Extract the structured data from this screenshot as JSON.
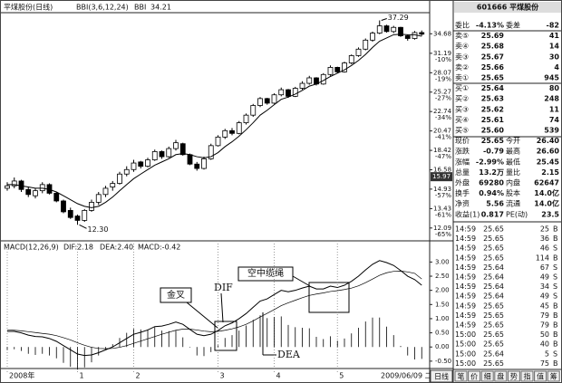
{
  "header": {
    "title": "平煤股份(日线)",
    "indicator": "BBI(3,6,12,24)",
    "bbi_label": "BBI",
    "bbi_value": 34.21
  },
  "price_chart": {
    "type": "candlestick",
    "log": true,
    "ylim": [
      11.5,
      38.5
    ],
    "yticks": [
      34.68,
      31.19,
      28.07,
      25.27,
      22.74,
      20.47,
      18.42,
      16.58,
      14.93,
      13.43,
      12.09
    ],
    "tick_pcts": [
      null,
      "-10%",
      "-19%",
      "-27%",
      "-34%",
      "-41%",
      "-47%",
      "-52%",
      "-57%",
      "-61%",
      "-65%"
    ],
    "cursor_price": 15.97,
    "low": {
      "value": 12.3,
      "label": "12.30"
    },
    "high": {
      "value": 37.29,
      "label": "37.29"
    },
    "candles": [
      [
        15.0,
        15.5,
        14.8,
        15.2
      ],
      [
        15.2,
        15.9,
        15.0,
        15.6
      ],
      [
        15.6,
        15.7,
        14.7,
        14.9
      ],
      [
        14.9,
        15.1,
        14.3,
        14.5
      ],
      [
        14.4,
        15.0,
        14.2,
        14.8
      ],
      [
        14.8,
        15.5,
        14.6,
        15.3
      ],
      [
        15.3,
        15.4,
        14.5,
        14.6
      ],
      [
        14.6,
        14.7,
        13.9,
        14.0
      ],
      [
        14.0,
        14.1,
        13.1,
        13.2
      ],
      [
        13.3,
        13.5,
        12.7,
        12.8
      ],
      [
        12.9,
        13.0,
        12.3,
        12.6
      ],
      [
        12.6,
        13.4,
        12.5,
        13.3
      ],
      [
        13.3,
        14.1,
        13.2,
        13.9
      ],
      [
        13.9,
        14.7,
        13.7,
        14.5
      ],
      [
        14.5,
        15.2,
        14.3,
        15.0
      ],
      [
        15.1,
        15.6,
        14.8,
        15.4
      ],
      [
        15.4,
        16.4,
        15.3,
        16.2
      ],
      [
        16.2,
        16.9,
        16.0,
        16.6
      ],
      [
        16.6,
        17.5,
        16.4,
        17.2
      ],
      [
        17.3,
        17.4,
        16.7,
        16.9
      ],
      [
        16.9,
        17.7,
        16.8,
        17.5
      ],
      [
        17.5,
        18.5,
        17.4,
        18.3
      ],
      [
        18.3,
        18.4,
        17.6,
        17.8
      ],
      [
        17.8,
        18.8,
        17.7,
        18.6
      ],
      [
        18.6,
        19.5,
        18.4,
        19.2
      ],
      [
        19.1,
        19.2,
        17.9,
        18.0
      ],
      [
        18.0,
        18.1,
        17.0,
        17.1
      ],
      [
        17.1,
        17.3,
        16.5,
        16.7
      ],
      [
        16.7,
        17.8,
        16.6,
        17.6
      ],
      [
        17.6,
        19.1,
        17.5,
        18.9
      ],
      [
        18.9,
        20.0,
        18.8,
        19.8
      ],
      [
        19.8,
        20.7,
        19.6,
        20.5
      ],
      [
        20.5,
        20.8,
        20.0,
        20.2
      ],
      [
        20.2,
        21.6,
        20.1,
        21.4
      ],
      [
        21.4,
        22.5,
        21.2,
        22.3
      ],
      [
        22.3,
        23.7,
        22.1,
        23.5
      ],
      [
        23.5,
        24.6,
        23.3,
        24.4
      ],
      [
        24.4,
        24.5,
        23.6,
        23.8
      ],
      [
        23.8,
        25.1,
        23.7,
        24.9
      ],
      [
        24.9,
        25.9,
        24.7,
        25.6
      ],
      [
        25.6,
        25.7,
        24.5,
        24.7
      ],
      [
        24.7,
        26.0,
        24.6,
        25.8
      ],
      [
        25.8,
        26.8,
        25.6,
        26.5
      ],
      [
        26.5,
        27.6,
        26.3,
        27.3
      ],
      [
        27.3,
        27.4,
        26.2,
        26.4
      ],
      [
        26.4,
        28.0,
        26.3,
        27.8
      ],
      [
        27.8,
        29.2,
        27.6,
        28.9
      ],
      [
        28.9,
        29.0,
        28.0,
        28.2
      ],
      [
        28.2,
        29.8,
        28.1,
        29.6
      ],
      [
        29.6,
        31.0,
        29.4,
        30.8
      ],
      [
        30.8,
        32.2,
        30.6,
        31.9
      ],
      [
        31.9,
        33.8,
        31.7,
        33.5
      ],
      [
        33.5,
        35.1,
        33.2,
        34.8
      ],
      [
        34.8,
        37.29,
        34.6,
        36.2
      ],
      [
        36.2,
        36.4,
        34.9,
        35.1
      ],
      [
        35.1,
        36.2,
        34.8,
        35.9
      ],
      [
        35.9,
        36.0,
        34.1,
        34.3
      ],
      [
        34.3,
        34.5,
        33.4,
        33.8
      ],
      [
        33.8,
        35.2,
        33.6,
        34.9
      ],
      [
        34.9,
        35.3,
        34.3,
        34.6
      ]
    ],
    "bbi": [
      15.3,
      15.3,
      15.2,
      15.1,
      15.0,
      15.0,
      14.9,
      14.7,
      14.4,
      14.1,
      13.8,
      13.6,
      13.5,
      13.6,
      13.9,
      14.3,
      14.8,
      15.3,
      15.8,
      16.2,
      16.6,
      17.0,
      17.3,
      17.6,
      18.0,
      18.1,
      18.0,
      17.8,
      17.7,
      17.8,
      18.2,
      18.8,
      19.3,
      19.9,
      20.6,
      21.4,
      22.3,
      22.9,
      23.6,
      24.3,
      24.6,
      25.0,
      25.5,
      26.1,
      26.4,
      26.9,
      27.5,
      28.0,
      28.5,
      29.2,
      30.0,
      31.0,
      32.2,
      33.3,
      33.9,
      34.5,
      34.6,
      34.5,
      34.5,
      34.21
    ],
    "categories": [
      "2008年",
      null,
      null,
      null,
      null,
      null,
      null,
      null,
      null,
      null,
      "1",
      null,
      null,
      null,
      null,
      null,
      null,
      null,
      "2",
      null,
      null,
      null,
      null,
      null,
      null,
      null,
      null,
      null,
      null,
      null,
      "3",
      null,
      null,
      null,
      null,
      null,
      null,
      null,
      "4",
      null,
      null,
      null,
      null,
      null,
      null,
      null,
      null,
      "5",
      null,
      null,
      null,
      null,
      null,
      null,
      null,
      null,
      null,
      null,
      null,
      null
    ],
    "date": "2009/06/09 二"
  },
  "macd": {
    "title": "MACD(12,26,9)",
    "dif_text": "DIF:2.18",
    "dea_text": "DEA:2.40",
    "macd_text": "MACD:-0.42",
    "ylim": [
      -0.6,
      3.3
    ],
    "yticks": [
      {
        "value": 3,
        "label": "3.00"
      },
      {
        "value": 2.5,
        "label": "2.50"
      },
      {
        "value": 2,
        "label": "2.00"
      },
      {
        "value": 1.5,
        "label": "1.50"
      },
      {
        "value": 1,
        "label": "1.00"
      },
      {
        "value": 0.5,
        "label": "0.50"
      },
      {
        "value": 0,
        "label": "0.00"
      },
      {
        "value": -0.5,
        "label": "-0.50"
      }
    ],
    "dif": [
      0.55,
      0.55,
      0.5,
      0.42,
      0.37,
      0.36,
      0.3,
      0.2,
      0.05,
      -0.1,
      -0.25,
      -0.3,
      -0.28,
      -0.2,
      -0.1,
      0.0,
      0.15,
      0.3,
      0.45,
      0.52,
      0.6,
      0.72,
      0.74,
      0.8,
      0.88,
      0.8,
      0.62,
      0.45,
      0.4,
      0.45,
      0.58,
      0.75,
      0.85,
      1.0,
      1.18,
      1.4,
      1.62,
      1.7,
      1.85,
      2.0,
      1.95,
      2.0,
      2.08,
      2.15,
      2.05,
      2.05,
      2.15,
      2.1,
      2.18,
      2.32,
      2.5,
      2.72,
      2.92,
      3.05,
      2.98,
      2.88,
      2.7,
      2.5,
      2.38,
      2.18
    ],
    "dea": [
      0.6,
      0.59,
      0.57,
      0.54,
      0.51,
      0.48,
      0.45,
      0.4,
      0.33,
      0.25,
      0.15,
      0.06,
      -0.01,
      -0.05,
      -0.06,
      -0.05,
      -0.01,
      0.05,
      0.13,
      0.21,
      0.29,
      0.37,
      0.45,
      0.52,
      0.59,
      0.63,
      0.63,
      0.6,
      0.56,
      0.54,
      0.55,
      0.59,
      0.64,
      0.71,
      0.8,
      0.92,
      1.06,
      1.19,
      1.32,
      1.46,
      1.56,
      1.65,
      1.74,
      1.82,
      1.87,
      1.91,
      1.96,
      1.99,
      2.03,
      2.08,
      2.16,
      2.27,
      2.4,
      2.53,
      2.62,
      2.67,
      2.68,
      2.65,
      2.6,
      2.4
    ],
    "hist": [
      -0.1,
      -0.08,
      -0.14,
      -0.24,
      -0.28,
      -0.24,
      -0.3,
      -0.4,
      -0.56,
      -0.7,
      -0.8,
      -0.72,
      -0.54,
      -0.3,
      -0.08,
      0.1,
      0.32,
      0.5,
      0.64,
      0.62,
      0.62,
      0.7,
      0.58,
      0.56,
      0.58,
      0.34,
      -0.02,
      -0.3,
      -0.32,
      -0.18,
      0.06,
      0.32,
      0.42,
      0.58,
      0.76,
      0.96,
      1.12,
      1.02,
      1.06,
      1.08,
      0.78,
      0.7,
      0.68,
      0.66,
      0.36,
      0.28,
      0.38,
      0.22,
      0.3,
      0.48,
      0.68,
      0.9,
      1.04,
      1.04,
      0.72,
      0.42,
      0.04,
      -0.3,
      -0.44,
      -0.42
    ],
    "annotations": {
      "golden_cross": "金叉",
      "dif": "DIF",
      "cable": "空中缆绳",
      "dea": "DEA"
    }
  },
  "tab": "日线",
  "quote_panel": {
    "title": "601666 平煤股份",
    "rows": [
      [
        "委比",
        "-4.13%",
        "委差",
        "-82"
      ],
      [
        "卖⑤",
        "25.69",
        "41"
      ],
      [
        "卖④",
        "25.68",
        "14"
      ],
      [
        "卖③",
        "25.67",
        "30"
      ],
      [
        "卖②",
        "25.66",
        "4"
      ],
      [
        "卖①",
        "25.65",
        "945"
      ],
      [
        "买①",
        "25.64",
        "80"
      ],
      [
        "买②",
        "25.63",
        "248"
      ],
      [
        "买③",
        "25.62",
        "11"
      ],
      [
        "买④",
        "25.61",
        "74"
      ],
      [
        "买⑤",
        "25.60",
        "539"
      ],
      [
        "现价",
        "25.65",
        "今开",
        "26.40"
      ],
      [
        "涨跌",
        "-0.79",
        "最高",
        "26.60"
      ],
      [
        "涨幅",
        "-2.99%",
        "最低",
        "25.45"
      ],
      [
        "总量",
        "13.2万",
        "量比",
        "2.15"
      ],
      [
        "外盘",
        "69280",
        "内盘",
        "62647"
      ],
      [
        "换手",
        "0.94%",
        "股本",
        "14.0亿"
      ],
      [
        "净资",
        "5.56",
        "流通",
        "14.0亿"
      ],
      [
        "收益(1)",
        "0.817",
        "PE(动)",
        "23.5"
      ]
    ],
    "ticks": [
      [
        "14:59",
        "25.65",
        "25",
        "B"
      ],
      [
        "14:59",
        "25.65",
        "36",
        "B"
      ],
      [
        "14:59",
        "25.65",
        "46",
        "S"
      ],
      [
        "14:59",
        "25.65",
        "114",
        "B"
      ],
      [
        "14:59",
        "25.64",
        "67",
        "S"
      ],
      [
        "14:59",
        "25.64",
        "49",
        "S"
      ],
      [
        "14:59",
        "25.64",
        "34",
        "S"
      ],
      [
        "14:59",
        "25.64",
        "49",
        "S"
      ],
      [
        "14:59",
        "25.65",
        "45",
        "B"
      ],
      [
        "14:59",
        "25.65",
        "79",
        "B"
      ],
      [
        "14:59",
        "25.65",
        "79",
        "B"
      ],
      [
        "15:00",
        "25.65",
        "50",
        "B"
      ],
      [
        "15:00",
        "25.65",
        "40",
        "B"
      ],
      [
        "15:00",
        "25.64",
        "5",
        "S"
      ],
      [
        "15:00",
        "25.65",
        "75",
        "B"
      ]
    ],
    "tabs": [
      "笔",
      "价",
      "细",
      "盘",
      "势",
      "指",
      "值",
      "筹"
    ]
  }
}
